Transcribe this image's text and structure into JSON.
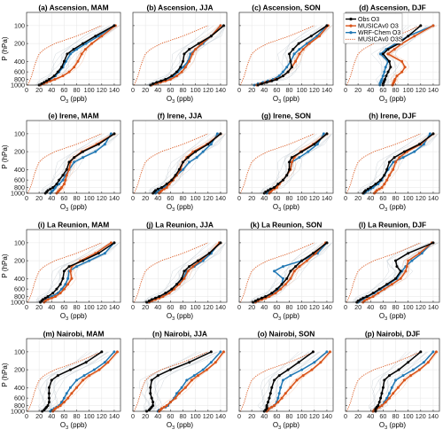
{
  "figure": {
    "panels": [
      {
        "title": "(a) Ascension, MAM"
      },
      {
        "title": "(b) Ascension, JJA"
      },
      {
        "title": "(c) Ascension, SON"
      },
      {
        "title": "(d) Ascension, DJF"
      },
      {
        "title": "(e) Irene, MAM"
      },
      {
        "title": "(f) Irene, JJA"
      },
      {
        "title": "(g) Irene, SON"
      },
      {
        "title": "(h) Irene, DJF"
      },
      {
        "title": "(i) La Reunion, MAM"
      },
      {
        "title": "(j) La Reunion, JJA"
      },
      {
        "title": "(k) La Reunion, SON"
      },
      {
        "title": "(l) La Reunion, DJF"
      },
      {
        "title": "(m) Nairobi, MAM"
      },
      {
        "title": "(n) Nairobi, JJA"
      },
      {
        "title": "(o) Nairobi, SON"
      },
      {
        "title": "(p) Nairobi, DJF"
      }
    ],
    "ylabel_text": "P (hPa)",
    "xlabel_text": "O",
    "xlabel_sub": "3",
    "xlabel_unit": " (ppb)",
    "xticks": [
      0,
      20,
      40,
      60,
      80,
      100,
      120,
      140
    ],
    "yticks": [
      100,
      200,
      400,
      600,
      800,
      1000
    ],
    "legend": [
      {
        "label": "Obs O3",
        "color": "#000000",
        "style": "solid-marker"
      },
      {
        "label": "MUSICAv0 O3",
        "color": "#d95319",
        "style": "solid-marker"
      },
      {
        "label": "WRF-Chem O3",
        "color": "#1f77b4",
        "style": "solid-marker"
      },
      {
        "label": "MUSICAv0 O3S",
        "color": "#d95319",
        "style": "dotted"
      }
    ],
    "colors": {
      "obs": "#000000",
      "musica": "#d95319",
      "wrf": "#1f77b4",
      "o3s": "#d95319",
      "spread_gray": "#c8cfd6",
      "spread_orange": "#f2b48f"
    }
  },
  "chart_data": {
    "type": "line",
    "xlim": [
      0,
      150
    ],
    "ylim": [
      1000,
      60
    ],
    "yscale": "log",
    "grid": true,
    "legend_position": "top-right",
    "pressure_levels": [
      1000,
      950,
      900,
      850,
      800,
      700,
      600,
      500,
      400,
      300,
      250,
      200,
      150,
      100
    ],
    "series_names": [
      "Obs O3",
      "MUSICAv0 O3",
      "WRF-Chem O3",
      "MUSICAv0 O3S"
    ],
    "panels": [
      {
        "id": "a",
        "obs": [
          20,
          24,
          28,
          32,
          36,
          44,
          50,
          56,
          60,
          65,
          75,
          90,
          110,
          140
        ],
        "musica": [
          22,
          27,
          32,
          38,
          45,
          58,
          68,
          76,
          82,
          88,
          94,
          104,
          120,
          142
        ],
        "wrf": [
          22,
          26,
          30,
          34,
          38,
          46,
          52,
          58,
          63,
          70,
          80,
          95,
          115,
          140
        ],
        "o3s": [
          2,
          3,
          4,
          5,
          6,
          8,
          10,
          12,
          15,
          20,
          28,
          45,
          80,
          120
        ]
      },
      {
        "id": "b",
        "obs": [
          28,
          32,
          38,
          45,
          52,
          62,
          70,
          76,
          80,
          82,
          90,
          105,
          125,
          145
        ],
        "musica": [
          30,
          36,
          44,
          52,
          60,
          70,
          78,
          84,
          90,
          95,
          100,
          110,
          125,
          140
        ],
        "wrf": [
          28,
          34,
          40,
          48,
          55,
          65,
          72,
          80,
          88,
          92,
          100,
          112,
          125,
          140
        ],
        "o3s": [
          2,
          3,
          4,
          5,
          6,
          8,
          10,
          12,
          15,
          20,
          28,
          45,
          80,
          120
        ]
      },
      {
        "id": "c",
        "obs": [
          30,
          36,
          44,
          52,
          60,
          70,
          78,
          84,
          82,
          80,
          86,
          95,
          115,
          140
        ],
        "musica": [
          28,
          34,
          42,
          50,
          58,
          70,
          78,
          84,
          90,
          96,
          102,
          112,
          128,
          142
        ],
        "wrf": [
          24,
          30,
          38,
          46,
          54,
          64,
          70,
          76,
          82,
          88,
          96,
          108,
          124,
          140
        ],
        "o3s": [
          2,
          3,
          4,
          5,
          6,
          8,
          10,
          12,
          15,
          20,
          28,
          45,
          80,
          120
        ]
      },
      {
        "id": "d",
        "obs": [
          60,
          60,
          61,
          62,
          63,
          65,
          68,
          72,
          70,
          60,
          68,
          85,
          100,
          120
        ],
        "musica": [
          75,
          76,
          77,
          78,
          79,
          82,
          90,
          95,
          90,
          68,
          78,
          90,
          110,
          140
        ],
        "wrf": [
          55,
          55,
          56,
          57,
          58,
          60,
          62,
          64,
          68,
          56,
          65,
          80,
          100,
          140
        ],
        "o3s": [
          2,
          3,
          4,
          5,
          6,
          8,
          10,
          12,
          15,
          20,
          28,
          45,
          80,
          120
        ]
      },
      {
        "id": "e",
        "obs": [
          30,
          32,
          34,
          38,
          42,
          48,
          52,
          58,
          64,
          68,
          76,
          90,
          115,
          140
        ],
        "musica": [
          48,
          50,
          52,
          54,
          56,
          60,
          62,
          64,
          68,
          70,
          76,
          88,
          112,
          140
        ],
        "wrf": [
          38,
          40,
          42,
          44,
          46,
          52,
          58,
          62,
          68,
          76,
          90,
          110,
          125,
          135
        ],
        "o3s": [
          2,
          3,
          4,
          5,
          6,
          8,
          10,
          12,
          15,
          20,
          28,
          45,
          80,
          120
        ]
      },
      {
        "id": "f",
        "obs": [
          32,
          34,
          36,
          40,
          46,
          54,
          62,
          68,
          74,
          80,
          88,
          100,
          120,
          140
        ],
        "musica": [
          42,
          44,
          46,
          50,
          54,
          58,
          64,
          70,
          76,
          80,
          86,
          96,
          118,
          140
        ],
        "wrf": [
          36,
          38,
          42,
          46,
          50,
          58,
          64,
          70,
          80,
          90,
          102,
          112,
          125,
          135
        ],
        "o3s": [
          2,
          3,
          4,
          5,
          6,
          8,
          10,
          12,
          15,
          20,
          28,
          45,
          80,
          120
        ]
      },
      {
        "id": "g",
        "obs": [
          40,
          42,
          46,
          50,
          56,
          62,
          70,
          76,
          80,
          80,
          84,
          100,
          120,
          140
        ],
        "musica": [
          48,
          50,
          52,
          56,
          60,
          64,
          70,
          76,
          82,
          84,
          88,
          98,
          118,
          140
        ],
        "wrf": [
          44,
          46,
          48,
          52,
          56,
          62,
          70,
          76,
          82,
          84,
          96,
          110,
          125,
          135
        ],
        "o3s": [
          2,
          3,
          4,
          5,
          6,
          8,
          10,
          12,
          15,
          20,
          28,
          45,
          80,
          120
        ]
      },
      {
        "id": "h",
        "obs": [
          28,
          30,
          32,
          36,
          40,
          48,
          56,
          62,
          66,
          70,
          78,
          94,
          118,
          140
        ],
        "musica": [
          46,
          48,
          50,
          54,
          58,
          62,
          66,
          70,
          76,
          80,
          86,
          98,
          120,
          140
        ],
        "wrf": [
          30,
          32,
          36,
          40,
          44,
          52,
          58,
          62,
          68,
          76,
          92,
          110,
          125,
          135
        ],
        "o3s": [
          2,
          3,
          4,
          5,
          6,
          8,
          10,
          12,
          15,
          20,
          28,
          45,
          80,
          120
        ]
      },
      {
        "id": "i",
        "obs": [
          22,
          24,
          26,
          30,
          34,
          42,
          48,
          54,
          58,
          60,
          68,
          90,
          115,
          140
        ],
        "musica": [
          28,
          30,
          34,
          40,
          46,
          54,
          60,
          66,
          72,
          70,
          72,
          86,
          110,
          135
        ],
        "wrf": [
          22,
          24,
          28,
          34,
          40,
          50,
          56,
          62,
          66,
          68,
          80,
          100,
          125,
          140
        ],
        "o3s": [
          2,
          3,
          4,
          5,
          6,
          8,
          10,
          12,
          15,
          20,
          28,
          45,
          80,
          120
        ]
      },
      {
        "id": "j",
        "obs": [
          22,
          26,
          30,
          36,
          42,
          52,
          62,
          70,
          78,
          82,
          90,
          104,
          122,
          140
        ],
        "musica": [
          26,
          30,
          36,
          42,
          48,
          58,
          66,
          74,
          82,
          88,
          96,
          108,
          122,
          138
        ],
        "wrf": [
          24,
          28,
          32,
          38,
          44,
          54,
          62,
          70,
          80,
          86,
          98,
          112,
          125,
          138
        ],
        "o3s": [
          2,
          3,
          4,
          5,
          6,
          8,
          10,
          12,
          15,
          20,
          28,
          45,
          80,
          120
        ]
      },
      {
        "id": "k",
        "obs": [
          22,
          26,
          30,
          36,
          42,
          52,
          60,
          68,
          76,
          82,
          90,
          100,
          118,
          140
        ],
        "musica": [
          26,
          30,
          36,
          42,
          48,
          58,
          66,
          74,
          82,
          88,
          96,
          108,
          122,
          138
        ],
        "wrf": [
          24,
          28,
          34,
          40,
          46,
          56,
          62,
          68,
          70,
          56,
          70,
          100,
          125,
          140
        ],
        "o3s": [
          2,
          3,
          4,
          5,
          6,
          8,
          10,
          12,
          15,
          20,
          28,
          45,
          80,
          120
        ]
      },
      {
        "id": "l",
        "obs": [
          18,
          20,
          24,
          28,
          34,
          44,
          54,
          66,
          80,
          88,
          82,
          80,
          100,
          140
        ],
        "musica": [
          28,
          30,
          34,
          38,
          44,
          52,
          62,
          74,
          88,
          96,
          98,
          100,
          118,
          138
        ],
        "wrf": [
          20,
          22,
          26,
          30,
          36,
          46,
          56,
          68,
          82,
          90,
          96,
          106,
          122,
          138
        ],
        "o3s": [
          2,
          3,
          4,
          5,
          6,
          8,
          10,
          12,
          15,
          20,
          28,
          45,
          80,
          120
        ]
      },
      {
        "id": "m",
        "obs": [
          25,
          28,
          30,
          32,
          34,
          36,
          36,
          36,
          36,
          40,
          50,
          70,
          95,
          120
        ],
        "musica": [
          42,
          44,
          46,
          50,
          54,
          60,
          66,
          72,
          80,
          90,
          100,
          116,
          130,
          145
        ],
        "wrf": [
          38,
          40,
          44,
          48,
          52,
          56,
          60,
          64,
          70,
          80,
          92,
          108,
          125,
          140
        ],
        "o3s": [
          2,
          3,
          4,
          5,
          6,
          8,
          10,
          12,
          15,
          20,
          28,
          45,
          80,
          120
        ]
      },
      {
        "id": "n",
        "obs": [
          22,
          26,
          28,
          30,
          32,
          32,
          30,
          28,
          28,
          30,
          40,
          60,
          90,
          125
        ],
        "musica": [
          42,
          44,
          46,
          50,
          54,
          60,
          68,
          74,
          84,
          94,
          104,
          118,
          132,
          145
        ],
        "wrf": [
          40,
          42,
          46,
          52,
          56,
          60,
          66,
          70,
          78,
          86,
          98,
          112,
          125,
          140
        ],
        "o3s": [
          2,
          3,
          4,
          5,
          6,
          8,
          10,
          12,
          15,
          20,
          28,
          45,
          80,
          120
        ]
      },
      {
        "id": "o",
        "obs": [
          40,
          42,
          44,
          44,
          44,
          46,
          48,
          50,
          52,
          56,
          64,
          78,
          95,
          118
        ],
        "musica": [
          44,
          46,
          48,
          52,
          56,
          62,
          68,
          74,
          82,
          92,
          102,
          116,
          130,
          145
        ],
        "wrf": [
          40,
          44,
          48,
          52,
          56,
          60,
          62,
          64,
          66,
          70,
          82,
          100,
          120,
          140
        ],
        "o3s": [
          2,
          3,
          4,
          5,
          6,
          8,
          10,
          12,
          15,
          20,
          28,
          45,
          80,
          120
        ]
      },
      {
        "id": "p",
        "obs": [
          48,
          48,
          48,
          50,
          52,
          54,
          56,
          58,
          60,
          62,
          70,
          85,
          100,
          120
        ],
        "musica": [
          44,
          46,
          50,
          54,
          58,
          64,
          70,
          76,
          84,
          94,
          104,
          118,
          132,
          145
        ],
        "wrf": [
          44,
          46,
          50,
          54,
          58,
          62,
          66,
          70,
          74,
          80,
          92,
          108,
          125,
          140
        ],
        "o3s": [
          2,
          3,
          4,
          5,
          6,
          8,
          10,
          12,
          15,
          20,
          28,
          45,
          80,
          120
        ]
      }
    ]
  }
}
